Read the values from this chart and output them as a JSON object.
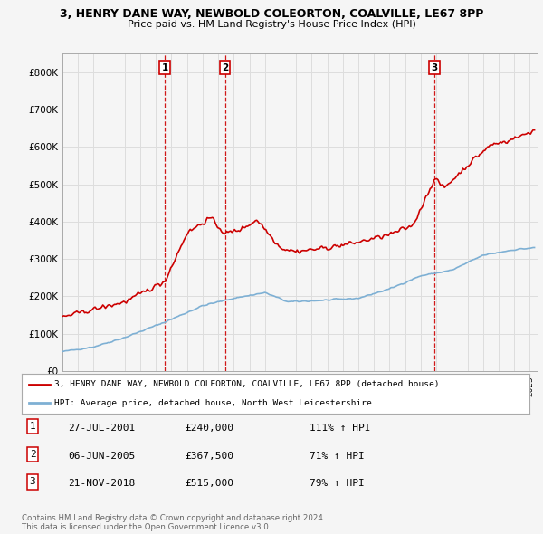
{
  "title_line1": "3, HENRY DANE WAY, NEWBOLD COLEORTON, COALVILLE, LE67 8PP",
  "title_line2": "Price paid vs. HM Land Registry's House Price Index (HPI)",
  "ylim": [
    0,
    850000
  ],
  "yticks": [
    0,
    100000,
    200000,
    300000,
    400000,
    500000,
    600000,
    700000,
    800000
  ],
  "ytick_labels": [
    "£0",
    "£100K",
    "£200K",
    "£300K",
    "£400K",
    "£500K",
    "£600K",
    "£700K",
    "£800K"
  ],
  "line_color_red": "#cc0000",
  "line_color_blue": "#7eb0d4",
  "dashed_color": "#cc0000",
  "grid_color": "#dddddd",
  "background_color": "#f5f5f5",
  "legend_label_red": "3, HENRY DANE WAY, NEWBOLD COLEORTON, COALVILLE, LE67 8PP (detached house)",
  "legend_label_blue": "HPI: Average price, detached house, North West Leicestershire",
  "transactions": [
    {
      "num": 1,
      "date": "27-JUL-2001",
      "price": 240000,
      "pct": "111%",
      "dir": "↑",
      "x_year": 2001.57
    },
    {
      "num": 2,
      "date": "06-JUN-2005",
      "price": 367500,
      "pct": "71%",
      "dir": "↑",
      "x_year": 2005.43
    },
    {
      "num": 3,
      "date": "21-NOV-2018",
      "price": 515000,
      "pct": "79%",
      "dir": "↑",
      "x_year": 2018.89
    }
  ],
  "footer_line1": "Contains HM Land Registry data © Crown copyright and database right 2024.",
  "footer_line2": "This data is licensed under the Open Government Licence v3.0.",
  "xlim_start": 1995.0,
  "xlim_end": 2025.5
}
